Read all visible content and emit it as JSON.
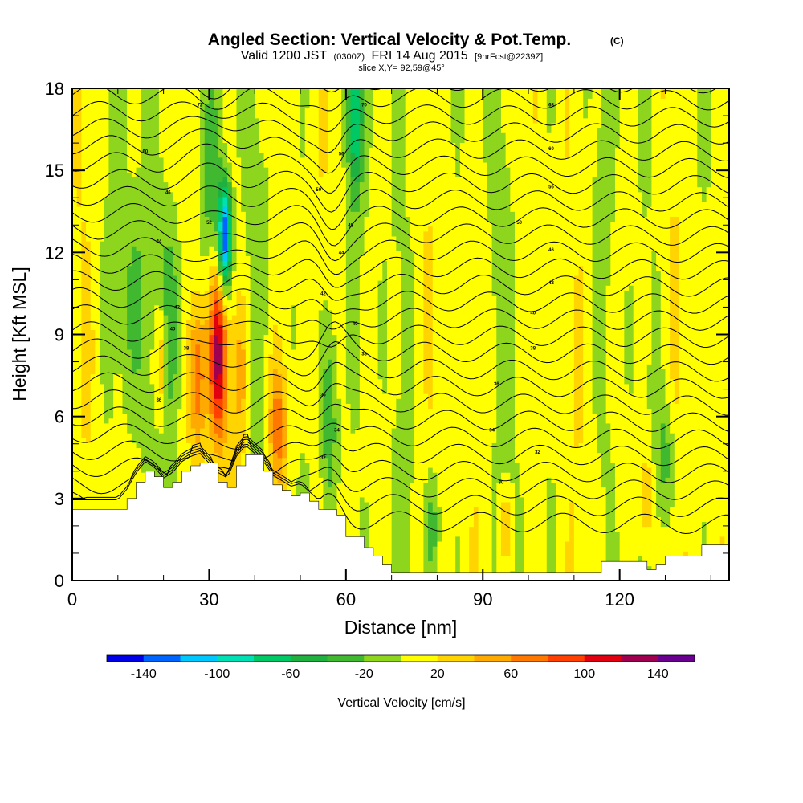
{
  "title": {
    "main": "Angled Section: Vertical Velocity & Pot.Temp.",
    "unit_tag": "(C)"
  },
  "subtitle": {
    "valid_label": "Valid 1200 JST",
    "utc_time": "(0300Z)",
    "date": "FRI 14 Aug 2015",
    "forecast": "[9hrFcst@2239Z]"
  },
  "slice_text": "slice X,Y= 92,59@45°",
  "chart_data": {
    "type": "heatmap",
    "xlabel": "Distance [nm]",
    "ylabel": "Height [Kft MSL]",
    "xlim": [
      0,
      144
    ],
    "ylim": [
      0,
      18
    ],
    "x_ticks": [
      0,
      30,
      60,
      90,
      120
    ],
    "y_ticks": [
      0,
      3,
      6,
      9,
      12,
      15,
      18
    ],
    "variable": "Vertical Velocity",
    "overlay": "Potential temperature isentropes (black contours)",
    "terrain_profile": {
      "x": [
        0,
        10,
        12,
        14,
        16,
        18,
        20,
        22,
        24,
        26,
        28,
        32,
        34,
        36,
        38,
        42,
        44,
        46,
        48,
        50,
        52,
        54,
        56,
        58,
        60,
        62,
        64,
        66,
        68,
        70,
        110,
        116,
        120,
        126,
        128,
        130,
        134,
        138,
        144
      ],
      "height": [
        2.6,
        2.6,
        3.0,
        3.6,
        4.0,
        3.8,
        3.4,
        3.6,
        4.0,
        4.2,
        4.3,
        3.6,
        3.4,
        4.2,
        4.6,
        4.0,
        3.5,
        3.3,
        3.1,
        3.2,
        2.9,
        2.6,
        2.6,
        2.4,
        1.6,
        1.6,
        1.2,
        0.9,
        0.6,
        0.3,
        0.3,
        0.7,
        0.7,
        0.4,
        0.6,
        0.9,
        0.9,
        1.3,
        1.3
      ]
    },
    "strong_updrafts": [
      {
        "x": 32,
        "z_range": [
          5.5,
          11
        ],
        "peak_w": 120
      },
      {
        "x": 27,
        "z_range": [
          5,
          10
        ],
        "peak_w": 80
      },
      {
        "x": 19,
        "z_range": [
          6,
          9
        ],
        "peak_w": 60
      },
      {
        "x": 45,
        "z_range": [
          3.5,
          7.5
        ],
        "peak_w": 70
      }
    ],
    "strong_downdrafts": [
      {
        "x": 33,
        "z_range": [
          10.5,
          14
        ],
        "peak_w": -130
      },
      {
        "x": 62,
        "z_range": [
          14,
          18
        ],
        "peak_w": -80
      }
    ],
    "contour_labels": [
      {
        "x": 28,
        "z": 17.4,
        "text": "72"
      },
      {
        "x": 16,
        "z": 15.7,
        "text": "60"
      },
      {
        "x": 21,
        "z": 14.2,
        "text": "46"
      },
      {
        "x": 19,
        "z": 12.4,
        "text": "44"
      },
      {
        "x": 23,
        "z": 10.0,
        "text": "42"
      },
      {
        "x": 22,
        "z": 9.2,
        "text": "40"
      },
      {
        "x": 25,
        "z": 8.5,
        "text": "38"
      },
      {
        "x": 19,
        "z": 6.6,
        "text": "36"
      },
      {
        "x": 30,
        "z": 13.1,
        "text": "52"
      },
      {
        "x": 64,
        "z": 17.4,
        "text": "70"
      },
      {
        "x": 59,
        "z": 15.6,
        "text": "56"
      },
      {
        "x": 54,
        "z": 14.3,
        "text": "50"
      },
      {
        "x": 61,
        "z": 13.0,
        "text": "48"
      },
      {
        "x": 59,
        "z": 12.0,
        "text": "44"
      },
      {
        "x": 55,
        "z": 10.5,
        "text": "42"
      },
      {
        "x": 62,
        "z": 9.4,
        "text": "40"
      },
      {
        "x": 64,
        "z": 8.3,
        "text": "38"
      },
      {
        "x": 55,
        "z": 6.8,
        "text": "36"
      },
      {
        "x": 58,
        "z": 5.5,
        "text": "34"
      },
      {
        "x": 55,
        "z": 4.5,
        "text": "32"
      },
      {
        "x": 105,
        "z": 17.4,
        "text": "68"
      },
      {
        "x": 105,
        "z": 15.8,
        "text": "60"
      },
      {
        "x": 105,
        "z": 14.4,
        "text": "56"
      },
      {
        "x": 98,
        "z": 13.1,
        "text": "50"
      },
      {
        "x": 105,
        "z": 12.1,
        "text": "46"
      },
      {
        "x": 105,
        "z": 10.9,
        "text": "42"
      },
      {
        "x": 101,
        "z": 9.8,
        "text": "40"
      },
      {
        "x": 101,
        "z": 8.5,
        "text": "38"
      },
      {
        "x": 93,
        "z": 7.2,
        "text": "36"
      },
      {
        "x": 92,
        "z": 5.5,
        "text": "34"
      },
      {
        "x": 102,
        "z": 4.7,
        "text": "32"
      },
      {
        "x": 94,
        "z": 3.6,
        "text": "30"
      }
    ]
  },
  "colorbar": {
    "label": "Vertical Velocity [cm/s]",
    "tick_labels": [
      "-140",
      "-100",
      "-60",
      "-20",
      "20",
      "60",
      "100",
      "140"
    ],
    "tick_values": [
      -140,
      -100,
      -60,
      -20,
      20,
      60,
      100,
      140
    ],
    "bins": [
      -160,
      -140,
      -120,
      -100,
      -80,
      -60,
      -40,
      -20,
      0,
      20,
      40,
      60,
      80,
      100,
      120,
      140,
      160
    ],
    "colors": [
      "#0000e8",
      "#0064ff",
      "#00c8ff",
      "#00e0b4",
      "#00c864",
      "#20b040",
      "#40b830",
      "#8ed51e",
      "#ffff00",
      "#ffd400",
      "#ffaa00",
      "#ff7800",
      "#ff4000",
      "#e00010",
      "#a00050",
      "#6a0090"
    ]
  }
}
